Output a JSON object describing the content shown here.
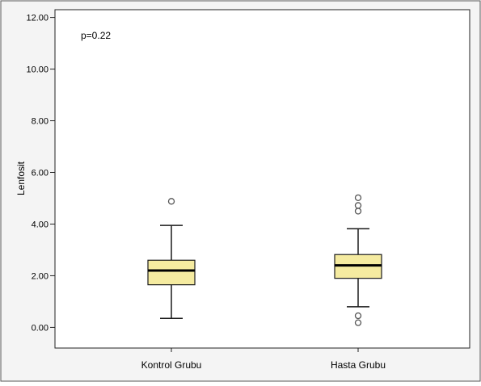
{
  "chart_data": {
    "type": "boxplot",
    "annotation": "p=0.22",
    "ylabel": "Lenfosit",
    "categories": [
      "Kontrol Grubu",
      "Hasta Grubu"
    ],
    "ylim": [
      -0.8,
      12.3
    ],
    "yticks": [
      "0.00",
      "2.00",
      "4.00",
      "6.00",
      "8.00",
      "10.00",
      "12.00"
    ],
    "grid": false,
    "box_fill": "#f5eba0",
    "outline_color": "#1a1a1a",
    "frame_bg": "#f4f4f4",
    "boxes": [
      {
        "category": "Kontrol Grubu",
        "whisker_low": 0.35,
        "q1": 1.65,
        "median": 2.2,
        "q3": 2.6,
        "whisker_high": 3.95,
        "outliers": [
          4.88
        ]
      },
      {
        "category": "Hasta Grubu",
        "whisker_low": 0.8,
        "q1": 1.9,
        "median": 2.4,
        "q3": 2.82,
        "whisker_high": 3.82,
        "outliers": [
          5.02,
          4.72,
          4.5,
          0.45,
          0.18
        ]
      }
    ]
  }
}
